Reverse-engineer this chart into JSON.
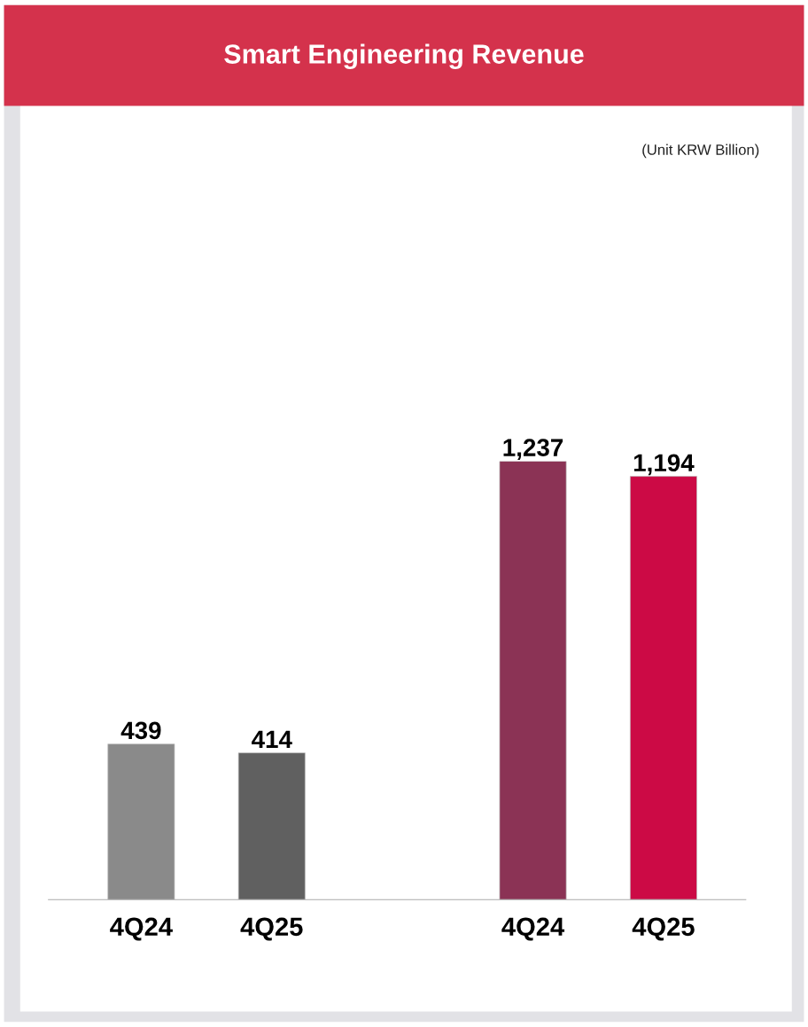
{
  "chart_data": {
    "type": "bar",
    "title": "Smart Engineering Revenue",
    "annotations": [
      "(Unit KRW Billion)"
    ],
    "categories": [
      "4Q24",
      "4Q25",
      null,
      "4Q24",
      "4Q25"
    ],
    "values": [
      439,
      414,
      null,
      1237,
      1194
    ],
    "colors": [
      "#8a8a8a",
      "#606060",
      "#ffffff",
      "#8b3355",
      "#cc0a45"
    ],
    "value_labels": [
      "439",
      "414",
      null,
      "1,237",
      "1,194"
    ],
    "grid": false,
    "tick_labels": "x"
  }
}
